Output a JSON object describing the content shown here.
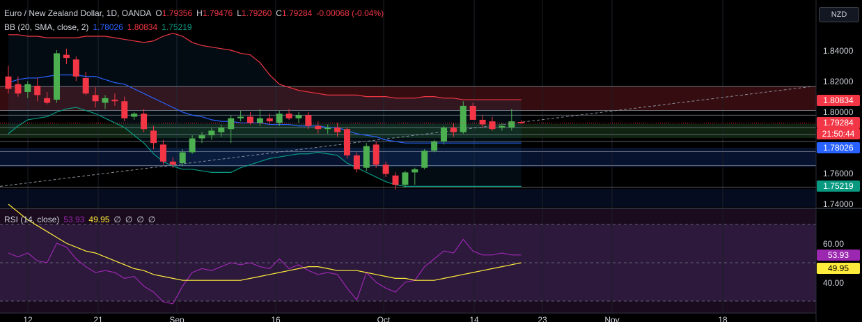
{
  "header": {
    "symbol": "Euro / New Zealand Dollar, 1D, OANDA",
    "o_label": "O",
    "o": "1.79356",
    "h_label": "H",
    "h": "1.79476",
    "l_label": "L",
    "l": "1.79260",
    "c_label": "C",
    "c": "1.79284",
    "change": "-0.00068 (-0.04%)"
  },
  "bb_legend": {
    "label": "BB (20, SMA, close, 2)",
    "basis": "1.78026",
    "upper": "1.80834",
    "lower": "1.75219"
  },
  "rsi_legend": {
    "label": "RSI (14, close)",
    "rsi": "53.93",
    "ma": "49.95",
    "extra": [
      "∅",
      "∅",
      "∅",
      "∅"
    ]
  },
  "currency": "NZD",
  "price_axis": [
    "1.84000",
    "1.82000",
    "1.80000",
    "1.76000",
    "1.74000"
  ],
  "price_tags": {
    "upper": "1.80834",
    "last": "1.79284",
    "countdown": "21:50:44",
    "basis": "1.78026",
    "lower": "1.75219"
  },
  "rsi_axis": [
    "60.00",
    "40.00"
  ],
  "rsi_tags": {
    "rsi": "53.93",
    "ma": "49.95"
  },
  "time_axis": [
    "12",
    "21",
    "Sep",
    "16",
    "Oct",
    "14",
    "23",
    "Nov",
    "18"
  ],
  "colors": {
    "up": "#4caf50",
    "down": "#f23645",
    "basis": "#2962ff",
    "upper": "#f23645",
    "lower": "#089981",
    "rsi": "#9c27b0",
    "rsi_ma": "#ffeb3b",
    "bg": "#000000"
  },
  "chart_data": {
    "type": "candlestick",
    "ylim": [
      1.738,
      1.858
    ],
    "candles": [
      {
        "o": 1.823,
        "h": 1.83,
        "l": 1.812,
        "c": 1.815
      },
      {
        "o": 1.818,
        "h": 1.823,
        "l": 1.81,
        "c": 1.812
      },
      {
        "o": 1.813,
        "h": 1.82,
        "l": 1.809,
        "c": 1.818
      },
      {
        "o": 1.817,
        "h": 1.822,
        "l": 1.807,
        "c": 1.811
      },
      {
        "o": 1.809,
        "h": 1.813,
        "l": 1.805,
        "c": 1.806
      },
      {
        "o": 1.808,
        "h": 1.84,
        "l": 1.806,
        "c": 1.838
      },
      {
        "o": 1.837,
        "h": 1.841,
        "l": 1.831,
        "c": 1.835
      },
      {
        "o": 1.834,
        "h": 1.836,
        "l": 1.82,
        "c": 1.823
      },
      {
        "o": 1.822,
        "h": 1.826,
        "l": 1.811,
        "c": 1.812
      },
      {
        "o": 1.811,
        "h": 1.816,
        "l": 1.803,
        "c": 1.807
      },
      {
        "o": 1.806,
        "h": 1.811,
        "l": 1.802,
        "c": 1.809
      },
      {
        "o": 1.808,
        "h": 1.812,
        "l": 1.804,
        "c": 1.807
      },
      {
        "o": 1.807,
        "h": 1.81,
        "l": 1.794,
        "c": 1.796
      },
      {
        "o": 1.797,
        "h": 1.8,
        "l": 1.795,
        "c": 1.799
      },
      {
        "o": 1.799,
        "h": 1.802,
        "l": 1.787,
        "c": 1.789
      },
      {
        "o": 1.788,
        "h": 1.791,
        "l": 1.776,
        "c": 1.78
      },
      {
        "o": 1.779,
        "h": 1.782,
        "l": 1.766,
        "c": 1.768
      },
      {
        "o": 1.768,
        "h": 1.771,
        "l": 1.764,
        "c": 1.766
      },
      {
        "o": 1.767,
        "h": 1.776,
        "l": 1.765,
        "c": 1.774
      },
      {
        "o": 1.774,
        "h": 1.785,
        "l": 1.773,
        "c": 1.783
      },
      {
        "o": 1.783,
        "h": 1.787,
        "l": 1.78,
        "c": 1.785
      },
      {
        "o": 1.785,
        "h": 1.79,
        "l": 1.782,
        "c": 1.788
      },
      {
        "o": 1.787,
        "h": 1.792,
        "l": 1.784,
        "c": 1.79
      },
      {
        "o": 1.789,
        "h": 1.798,
        "l": 1.78,
        "c": 1.796
      },
      {
        "o": 1.796,
        "h": 1.801,
        "l": 1.794,
        "c": 1.797
      },
      {
        "o": 1.797,
        "h": 1.8,
        "l": 1.792,
        "c": 1.793
      },
      {
        "o": 1.793,
        "h": 1.802,
        "l": 1.791,
        "c": 1.796
      },
      {
        "o": 1.796,
        "h": 1.799,
        "l": 1.792,
        "c": 1.794
      },
      {
        "o": 1.793,
        "h": 1.801,
        "l": 1.791,
        "c": 1.799
      },
      {
        "o": 1.799,
        "h": 1.802,
        "l": 1.795,
        "c": 1.796
      },
      {
        "o": 1.796,
        "h": 1.8,
        "l": 1.793,
        "c": 1.798
      },
      {
        "o": 1.798,
        "h": 1.8,
        "l": 1.789,
        "c": 1.791
      },
      {
        "o": 1.791,
        "h": 1.794,
        "l": 1.786,
        "c": 1.789
      },
      {
        "o": 1.789,
        "h": 1.792,
        "l": 1.786,
        "c": 1.79
      },
      {
        "o": 1.79,
        "h": 1.793,
        "l": 1.784,
        "c": 1.787
      },
      {
        "o": 1.789,
        "h": 1.79,
        "l": 1.77,
        "c": 1.772
      },
      {
        "o": 1.772,
        "h": 1.774,
        "l": 1.761,
        "c": 1.763
      },
      {
        "o": 1.764,
        "h": 1.78,
        "l": 1.762,
        "c": 1.778
      },
      {
        "o": 1.779,
        "h": 1.781,
        "l": 1.764,
        "c": 1.766
      },
      {
        "o": 1.766,
        "h": 1.768,
        "l": 1.758,
        "c": 1.76
      },
      {
        "o": 1.759,
        "h": 1.761,
        "l": 1.75,
        "c": 1.753
      },
      {
        "o": 1.753,
        "h": 1.762,
        "l": 1.751,
        "c": 1.761
      },
      {
        "o": 1.761,
        "h": 1.764,
        "l": 1.753,
        "c": 1.763
      },
      {
        "o": 1.764,
        "h": 1.776,
        "l": 1.763,
        "c": 1.775
      },
      {
        "o": 1.775,
        "h": 1.782,
        "l": 1.774,
        "c": 1.781
      },
      {
        "o": 1.781,
        "h": 1.791,
        "l": 1.779,
        "c": 1.79
      },
      {
        "o": 1.79,
        "h": 1.793,
        "l": 1.784,
        "c": 1.787
      },
      {
        "o": 1.787,
        "h": 1.807,
        "l": 1.786,
        "c": 1.804
      },
      {
        "o": 1.804,
        "h": 1.806,
        "l": 1.795,
        "c": 1.795
      },
      {
        "o": 1.795,
        "h": 1.798,
        "l": 1.79,
        "c": 1.792
      },
      {
        "o": 1.794,
        "h": 1.797,
        "l": 1.788,
        "c": 1.789
      },
      {
        "o": 1.79,
        "h": 1.793,
        "l": 1.788,
        "c": 1.791
      },
      {
        "o": 1.79,
        "h": 1.802,
        "l": 1.788,
        "c": 1.794
      },
      {
        "o": 1.7936,
        "h": 1.7948,
        "l": 1.7926,
        "c": 1.7928
      }
    ],
    "bb_upper": [
      1.85,
      1.85,
      1.849,
      1.849,
      1.848,
      1.848,
      1.848,
      1.848,
      1.849,
      1.849,
      1.849,
      1.848,
      1.847,
      1.846,
      1.845,
      1.846,
      1.849,
      1.851,
      1.849,
      1.845,
      1.843,
      1.842,
      1.841,
      1.84,
      1.838,
      1.837,
      1.832,
      1.824,
      1.818,
      1.816,
      1.814,
      1.813,
      1.812,
      1.811,
      1.811,
      1.811,
      1.811,
      1.81,
      1.81,
      1.81,
      1.809,
      1.809,
      1.809,
      1.81,
      1.81,
      1.809,
      1.809,
      1.808,
      1.808,
      1.808,
      1.808,
      1.808,
      1.808,
      1.808
    ],
    "bb_basis": [
      1.819,
      1.821,
      1.822,
      1.822,
      1.823,
      1.824,
      1.824,
      1.824,
      1.823,
      1.823,
      1.821,
      1.819,
      1.818,
      1.815,
      1.812,
      1.809,
      1.806,
      1.803,
      1.8,
      1.798,
      1.797,
      1.795,
      1.794,
      1.794,
      1.793,
      1.793,
      1.793,
      1.792,
      1.792,
      1.792,
      1.791,
      1.791,
      1.791,
      1.79,
      1.79,
      1.788,
      1.786,
      1.785,
      1.784,
      1.782,
      1.781,
      1.78,
      1.78,
      1.78,
      1.78,
      1.78,
      1.78,
      1.78,
      1.78,
      1.78,
      1.78,
      1.78,
      1.78,
      1.78
    ],
    "bb_lower": [
      1.786,
      1.791,
      1.795,
      1.796,
      1.797,
      1.8,
      1.802,
      1.803,
      1.801,
      1.799,
      1.796,
      1.793,
      1.79,
      1.785,
      1.78,
      1.773,
      1.768,
      1.765,
      1.763,
      1.763,
      1.762,
      1.761,
      1.761,
      1.761,
      1.764,
      1.766,
      1.768,
      1.77,
      1.771,
      1.772,
      1.773,
      1.773,
      1.774,
      1.773,
      1.772,
      1.767,
      1.764,
      1.761,
      1.758,
      1.755,
      1.753,
      1.752,
      1.752,
      1.752,
      1.752,
      1.752,
      1.752,
      1.752,
      1.752,
      1.752,
      1.752,
      1.752,
      1.752,
      1.752
    ],
    "rsi_ylim": [
      20,
      80
    ],
    "rsi": [
      55,
      53,
      55,
      51,
      50,
      60,
      58,
      52,
      48,
      45,
      46,
      45,
      42,
      43,
      38,
      35,
      30,
      29,
      38,
      45,
      47,
      46,
      48,
      50,
      49,
      50,
      48,
      47,
      52,
      47,
      49,
      46,
      44,
      45,
      44,
      37,
      31,
      45,
      40,
      37,
      35,
      40,
      41,
      48,
      52,
      56,
      55,
      62,
      56,
      54,
      54,
      55,
      54,
      54
    ],
    "rsi_ma": [
      80,
      76,
      72,
      69,
      66,
      63,
      60,
      58,
      56,
      55,
      53,
      51,
      49,
      47,
      46,
      44,
      43,
      42,
      41,
      41,
      41,
      41,
      41,
      41,
      41,
      42,
      43,
      44,
      45,
      46,
      47,
      48,
      48,
      47,
      46,
      46,
      46,
      45,
      44,
      43,
      42,
      42,
      41,
      41,
      41,
      42,
      43,
      44,
      45,
      46,
      47,
      48,
      49,
      50
    ],
    "horizontal_levels": [
      1.8165,
      1.801,
      1.798,
      1.79,
      1.7855,
      1.781,
      1.7745,
      1.7655,
      1.7515
    ],
    "trend_line": [
      [
        0,
        1.752
      ],
      [
        61,
        1.817
      ]
    ]
  }
}
